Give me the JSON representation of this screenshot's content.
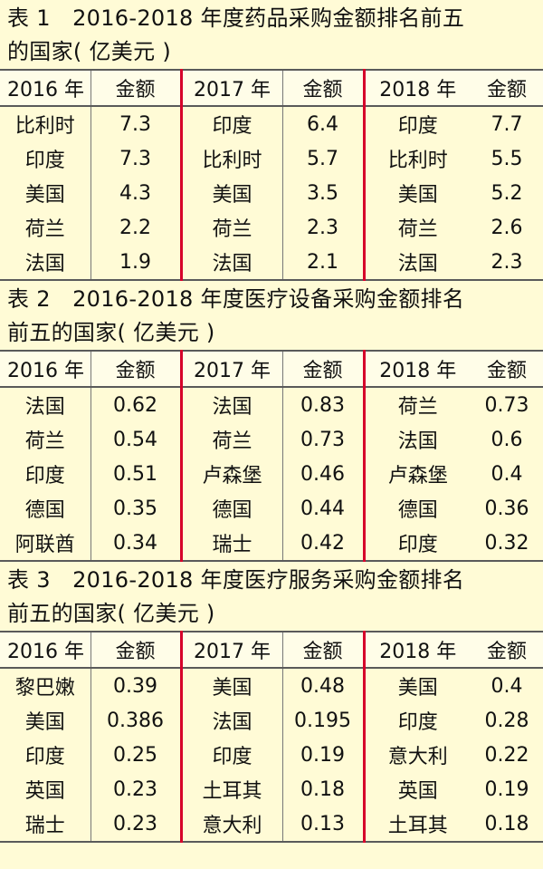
{
  "tables": [
    {
      "title_line1": "表 1　2016-2018 年度药品采购金额排名前五",
      "title_line2": "的国家( 亿美元 )",
      "headers": [
        "2016 年",
        "金额",
        "2017 年",
        "金额",
        "2018 年",
        "金额"
      ],
      "rows": [
        [
          "比利时",
          "7.3",
          "印度",
          "6.4",
          "印度",
          "7.7"
        ],
        [
          "印度",
          "7.3",
          "比利时",
          "5.7",
          "比利时",
          "5.5"
        ],
        [
          "美国",
          "4.3",
          "美国",
          "3.5",
          "美国",
          "5.2"
        ],
        [
          "荷兰",
          "2.2",
          "荷兰",
          "2.3",
          "荷兰",
          "2.6"
        ],
        [
          "法国",
          "1.9",
          "法国",
          "2.1",
          "法国",
          "2.3"
        ]
      ]
    },
    {
      "title_line1": "表 2　2016-2018 年度医疗设备采购金额排名",
      "title_line2": "前五的国家( 亿美元 )",
      "headers": [
        "2016 年",
        "金额",
        "2017 年",
        "金额",
        "2018 年",
        "金额"
      ],
      "rows": [
        [
          "法国",
          "0.62",
          "法国",
          "0.83",
          "荷兰",
          "0.73"
        ],
        [
          "荷兰",
          "0.54",
          "荷兰",
          "0.73",
          "法国",
          "0.6"
        ],
        [
          "印度",
          "0.51",
          "卢森堡",
          "0.46",
          "卢森堡",
          "0.4"
        ],
        [
          "德国",
          "0.35",
          "德国",
          "0.44",
          "德国",
          "0.36"
        ],
        [
          "阿联酋",
          "0.34",
          "瑞士",
          "0.42",
          "印度",
          "0.32"
        ]
      ]
    },
    {
      "title_line1": "表 3　2016-2018 年度医疗服务采购金额排名",
      "title_line2": "前五的国家( 亿美元 )",
      "headers": [
        "2016 年",
        "金额",
        "2017 年",
        "金额",
        "2018 年",
        "金额"
      ],
      "rows": [
        [
          "黎巴嫩",
          "0.39",
          "美国",
          "0.48",
          "美国",
          "0.4"
        ],
        [
          "美国",
          "0.386",
          "法国",
          "0.195",
          "印度",
          "0.28"
        ],
        [
          "印度",
          "0.25",
          "印度",
          "0.19",
          "意大利",
          "0.22"
        ],
        [
          "英国",
          "0.23",
          "土耳其",
          "0.18",
          "英国",
          "0.19"
        ],
        [
          "瑞士",
          "0.23",
          "意大利",
          "0.13",
          "土耳其",
          "0.18"
        ]
      ]
    }
  ]
}
